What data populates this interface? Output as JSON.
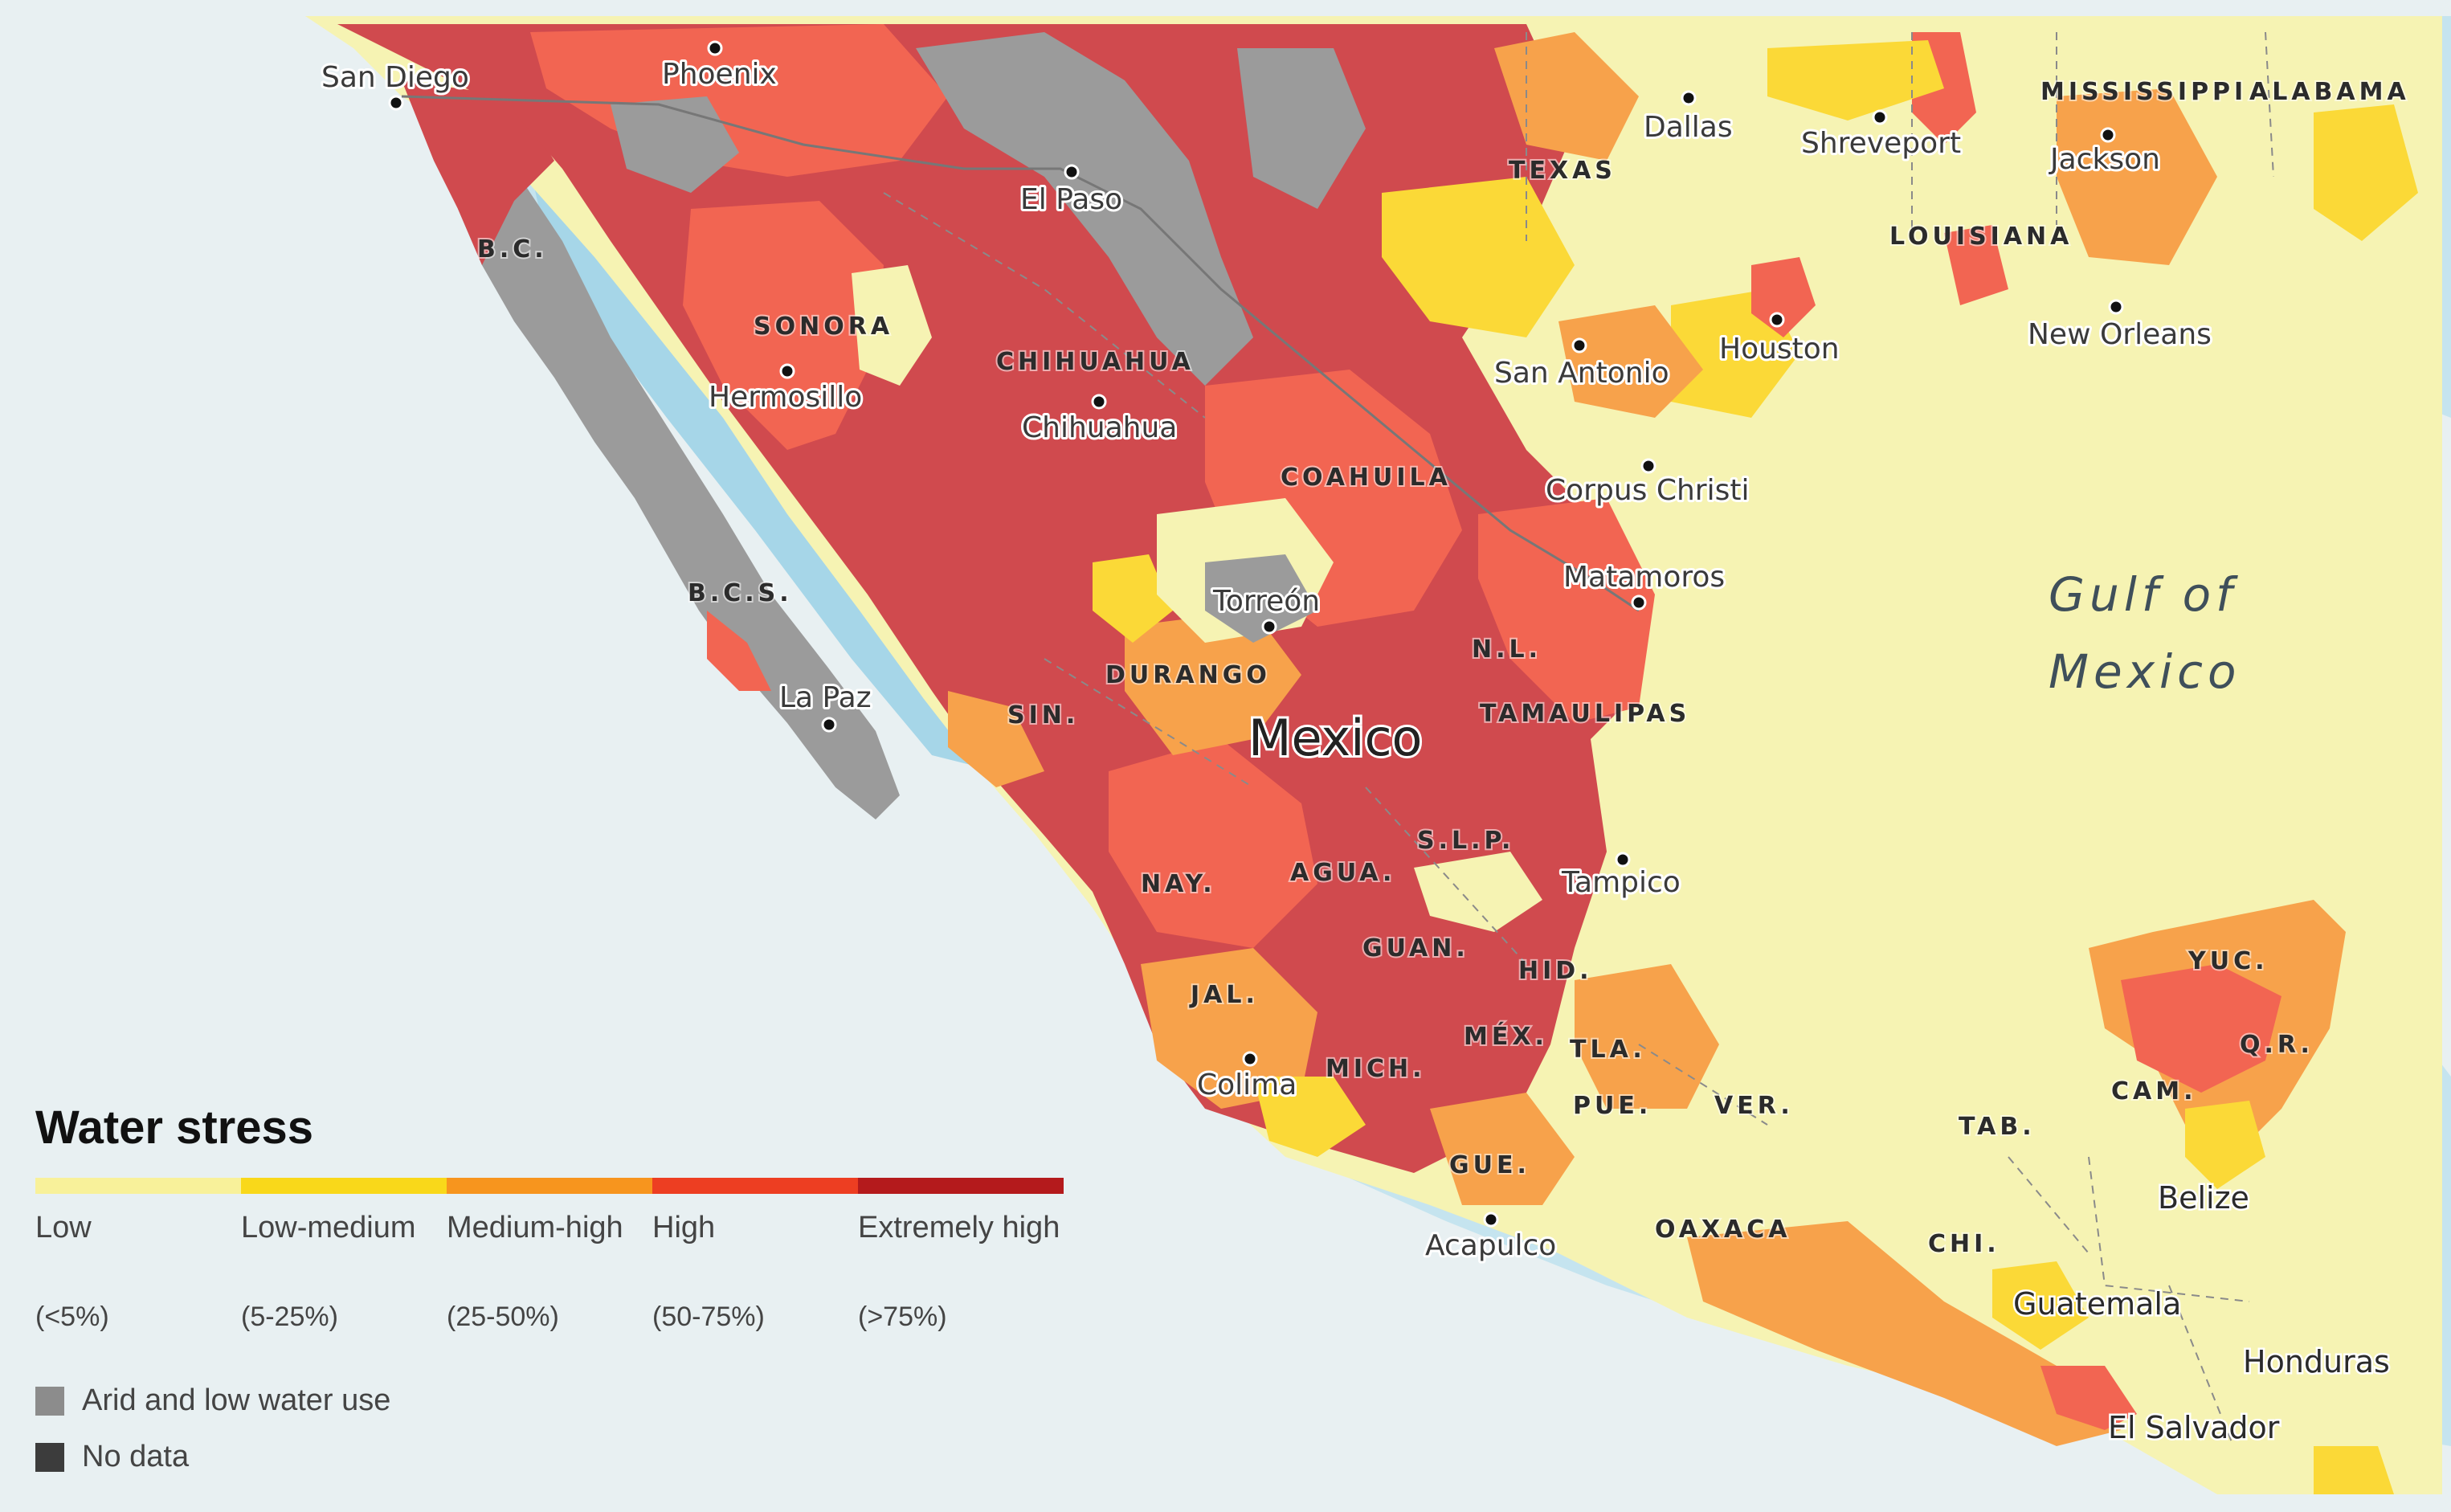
{
  "colors": {
    "ocean_shallow": "#bfe2ee",
    "ocean": "#e6eff1",
    "low": "#f6f3b3",
    "low_medium": "#fbd937",
    "medium_high": "#f7a24b",
    "high": "#f26552",
    "extremely_high": "#d04a4e",
    "arid": "#9b9b9b",
    "no_data": "#424242"
  },
  "map": {
    "cities": [
      {
        "name": "San Diego"
      },
      {
        "name": "Phoenix"
      },
      {
        "name": "El Paso"
      },
      {
        "name": "Dallas"
      },
      {
        "name": "Shreveport"
      },
      {
        "name": "Jackson"
      },
      {
        "name": "Hermosillo"
      },
      {
        "name": "Chihuahua"
      },
      {
        "name": "San Antonio"
      },
      {
        "name": "Houston"
      },
      {
        "name": "New Orleans"
      },
      {
        "name": "Corpus Christi"
      },
      {
        "name": "Matamoros"
      },
      {
        "name": "Torreón"
      },
      {
        "name": "La Paz"
      },
      {
        "name": "Tampico"
      },
      {
        "name": "Colima"
      },
      {
        "name": "Acapulco"
      }
    ],
    "states": [
      "B.C.",
      "SONORA",
      "CHIHUAHUA",
      "COAHUILA",
      "TEXAS",
      "LOUISIANA",
      "MISSISSIPPI",
      "ALABAMA",
      "B.C.S.",
      "SIN.",
      "DURANGO",
      "N.L.",
      "TAMAULIPAS",
      "S.L.P.",
      "NAY.",
      "AGUA.",
      "GUAN.",
      "JAL.",
      "HID.",
      "MÉX.",
      "TLA.",
      "MICH.",
      "PUE.",
      "VER.",
      "GUE.",
      "OAXACA",
      "TAB.",
      "CAM.",
      "YUC.",
      "Q.R.",
      "CHI."
    ],
    "countries": [
      "Mexico",
      "Belize",
      "Guatemala",
      "Honduras",
      "El Salvador"
    ],
    "water_body": {
      "line1": "Gulf of",
      "line2": "Mexico"
    }
  },
  "legend": {
    "title": "Water stress",
    "classes": [
      {
        "label": "Low",
        "range": "(<5%)"
      },
      {
        "label": "Low-medium",
        "range": "(5-25%)"
      },
      {
        "label": "Medium-high",
        "range": "(25-50%)"
      },
      {
        "label": "High",
        "range": "(50-75%)"
      },
      {
        "label": "Extremely high",
        "range": "(>75%)"
      }
    ],
    "extra": [
      {
        "label": "Arid and low water use"
      },
      {
        "label": "No data"
      }
    ]
  }
}
